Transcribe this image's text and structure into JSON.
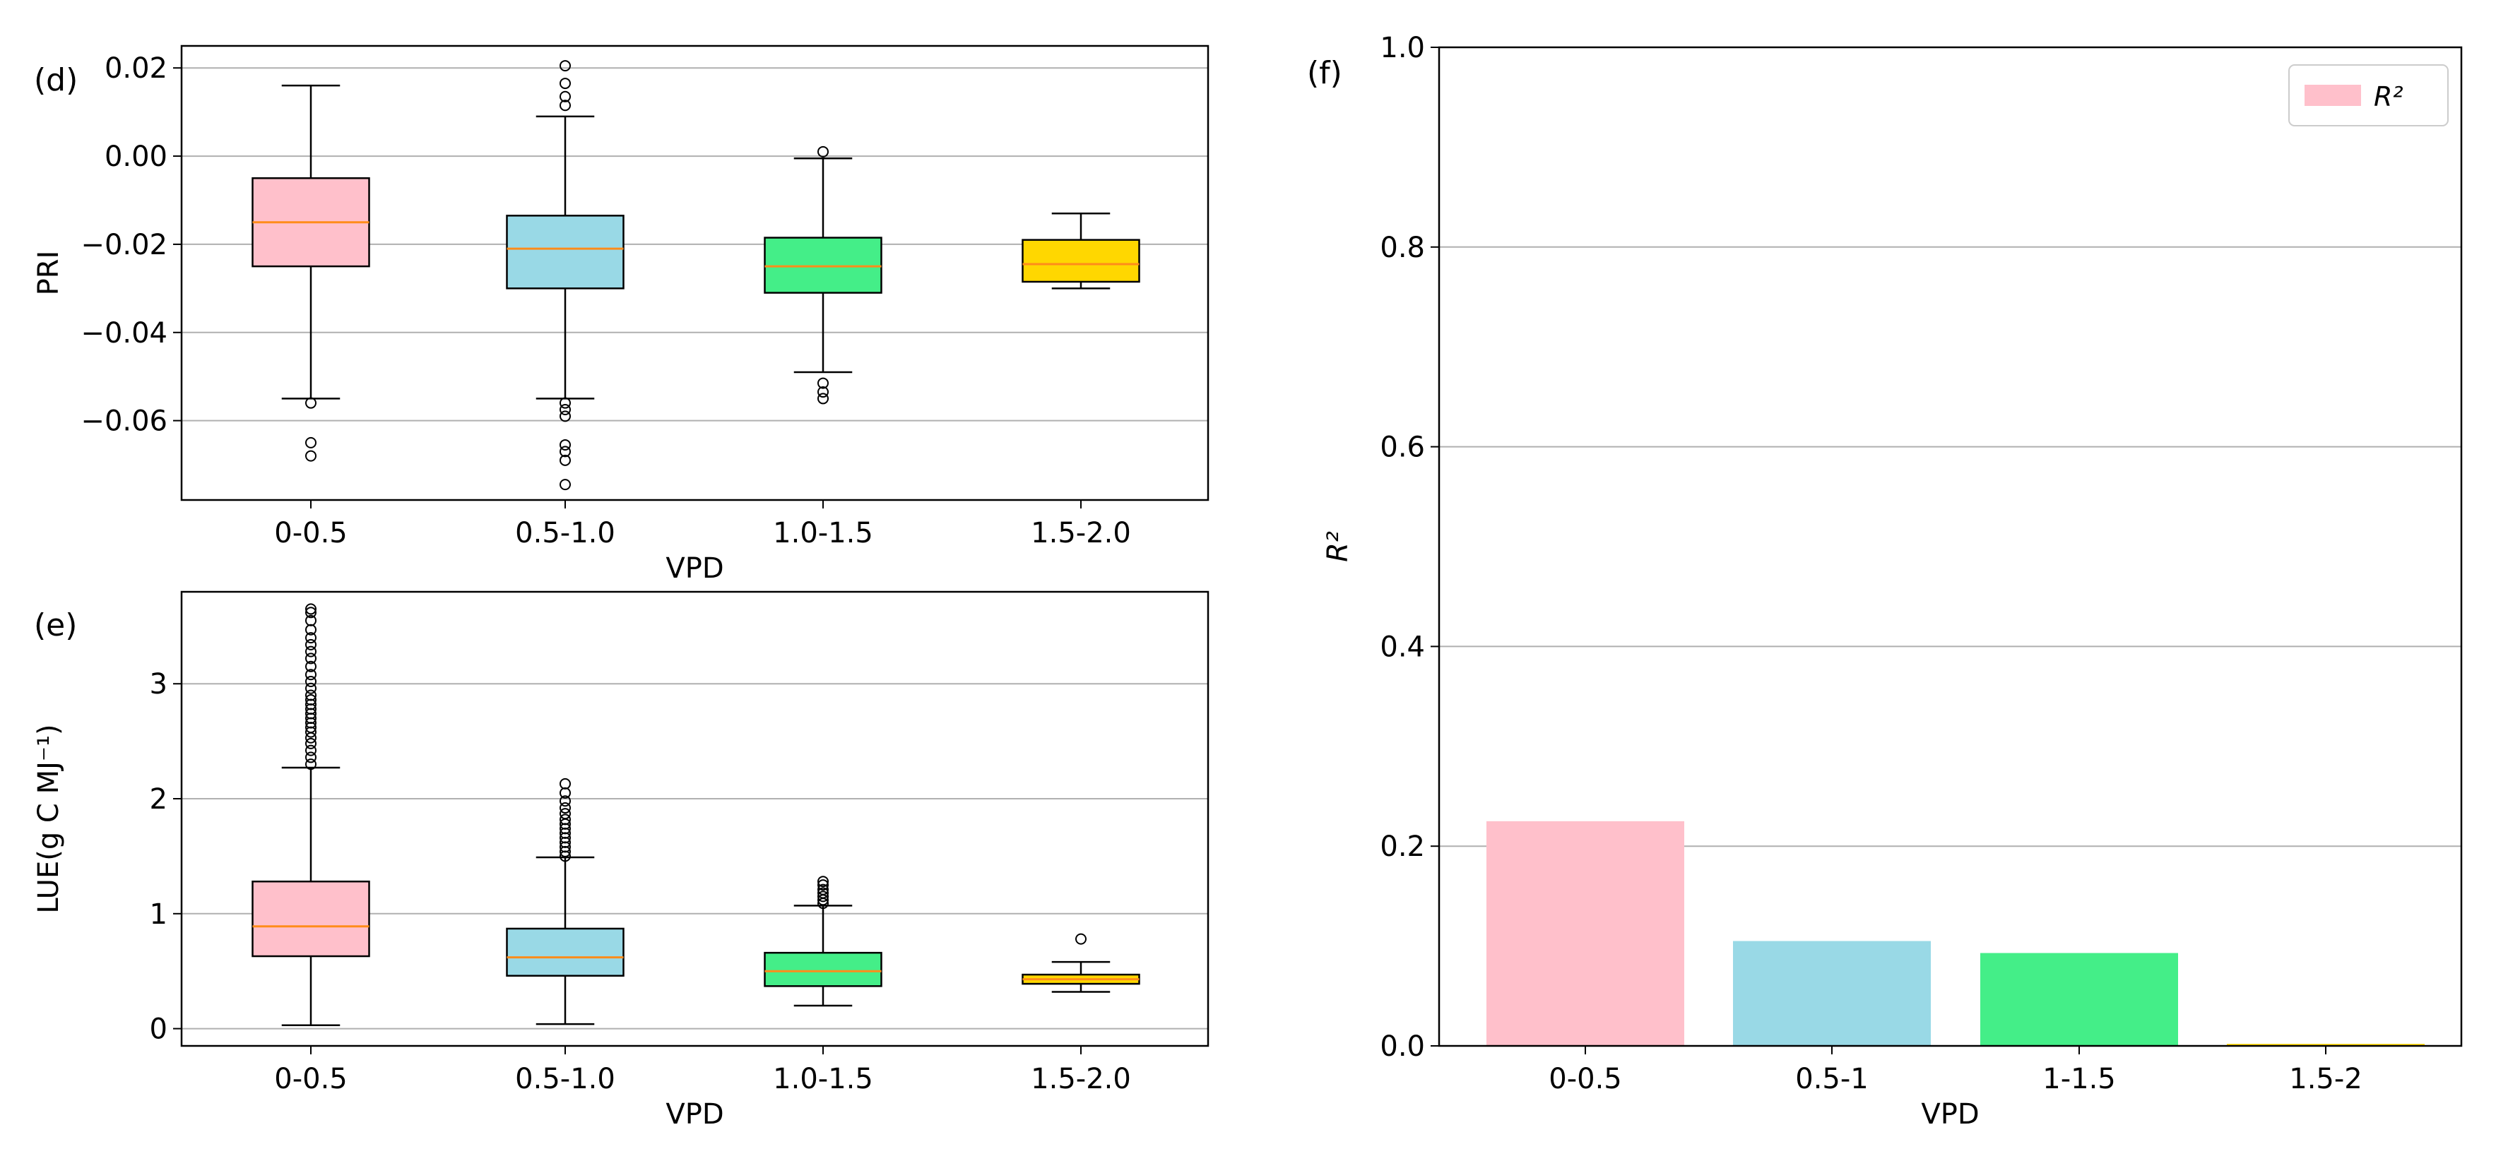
{
  "chart_data": [
    {
      "panel": "(d)",
      "type": "box",
      "xlabel": "VPD",
      "ylabel": "PRI",
      "categories": [
        "0-0.5",
        "0.5-1.0",
        "1.0-1.5",
        "1.5-2.0"
      ],
      "ylim": [
        -0.078,
        0.025
      ],
      "yticks": [
        0.02,
        0.0,
        -0.02,
        -0.04,
        -0.06
      ],
      "ytick_labels": [
        "0.02",
        "0.00",
        "−0.02",
        "−0.04",
        "−0.06"
      ],
      "grid": "horizontal",
      "boxes": [
        {
          "category": "0-0.5",
          "color": "#ffc0cb",
          "whislo": -0.055,
          "q1": -0.025,
          "median": -0.015,
          "q3": -0.005,
          "whishi": 0.016,
          "fliers": [
            -0.056,
            -0.065,
            -0.068
          ]
        },
        {
          "category": "0.5-1.0",
          "color": "#99d9e6",
          "whislo": -0.055,
          "q1": -0.03,
          "median": -0.021,
          "q3": -0.0135,
          "whishi": 0.009,
          "fliers": [
            0.0115,
            0.0135,
            0.0165,
            0.0205,
            -0.056,
            -0.0575,
            -0.059,
            -0.0655,
            -0.067,
            -0.069,
            -0.0745
          ]
        },
        {
          "category": "1.0-1.5",
          "color": "#44ee88",
          "whislo": -0.049,
          "q1": -0.031,
          "median": -0.025,
          "q3": -0.0185,
          "whishi": -0.0005,
          "fliers": [
            0.001,
            -0.0515,
            -0.0535,
            -0.055
          ]
        },
        {
          "category": "1.5-2.0",
          "color": "#ffd700",
          "whislo": -0.03,
          "q1": -0.0285,
          "median": -0.0245,
          "q3": -0.019,
          "whishi": -0.013,
          "fliers": []
        }
      ]
    },
    {
      "panel": "(e)",
      "type": "box",
      "xlabel": "VPD",
      "ylabel": "LUE(g C MJ⁻¹)",
      "categories": [
        "0-0.5",
        "0.5-1.0",
        "1.0-1.5",
        "1.5-2.0"
      ],
      "ylim": [
        -0.15,
        3.8
      ],
      "yticks": [
        0,
        1,
        2,
        3
      ],
      "ytick_labels": [
        "0",
        "1",
        "2",
        "3"
      ],
      "grid": "horizontal",
      "boxes": [
        {
          "category": "0-0.5",
          "color": "#ffc0cb",
          "whislo": 0.03,
          "q1": 0.63,
          "median": 0.89,
          "q3": 1.28,
          "whishi": 2.27,
          "fliers": [
            2.3,
            2.36,
            2.42,
            2.48,
            2.53,
            2.58,
            2.62,
            2.66,
            2.7,
            2.74,
            2.78,
            2.82,
            2.86,
            2.9,
            2.96,
            3.02,
            3.08,
            3.15,
            3.22,
            3.28,
            3.34,
            3.4,
            3.47,
            3.55,
            3.62,
            3.65
          ]
        },
        {
          "category": "0.5-1.0",
          "color": "#99d9e6",
          "whislo": 0.04,
          "q1": 0.46,
          "median": 0.62,
          "q3": 0.87,
          "whishi": 1.49,
          "fliers": [
            1.5,
            1.54,
            1.58,
            1.62,
            1.66,
            1.7,
            1.74,
            1.78,
            1.82,
            1.87,
            1.92,
            1.98,
            2.05,
            2.13
          ]
        },
        {
          "category": "1.0-1.5",
          "color": "#44ee88",
          "whislo": 0.2,
          "q1": 0.37,
          "median": 0.5,
          "q3": 0.66,
          "whishi": 1.07,
          "fliers": [
            1.09,
            1.12,
            1.15,
            1.18,
            1.21,
            1.25,
            1.28
          ]
        },
        {
          "category": "1.5-2.0",
          "color": "#ffd700",
          "whislo": 0.32,
          "q1": 0.39,
          "median": 0.43,
          "q3": 0.47,
          "whishi": 0.58,
          "fliers": [
            0.78
          ]
        }
      ]
    },
    {
      "panel": "(f)",
      "type": "bar",
      "xlabel": "VPD",
      "ylabel": "R²",
      "categories": [
        "0-0.5",
        "0.5-1",
        "1-1.5",
        "1.5-2"
      ],
      "values": [
        0.225,
        0.105,
        0.093,
        0.002
      ],
      "colors": [
        "#ffc0cb",
        "#99d9e6",
        "#44ee88",
        "#ffd700"
      ],
      "ylim": [
        0,
        1.0
      ],
      "yticks": [
        0.0,
        0.2,
        0.4,
        0.6,
        0.8,
        1.0
      ],
      "ytick_labels": [
        "0.0",
        "0.2",
        "0.4",
        "0.6",
        "0.8",
        "1.0"
      ],
      "grid": "horizontal",
      "legend": {
        "label": "R²",
        "color": "#ffc0cb",
        "location": "top-right"
      }
    }
  ]
}
